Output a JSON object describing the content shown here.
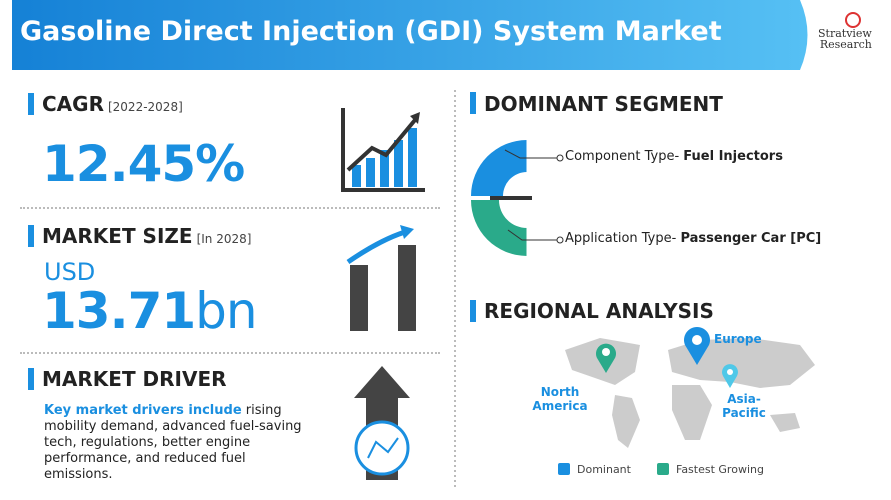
{
  "header": {
    "title": "Gasoline Direct Injection (GDI) System Market",
    "logo": {
      "name": "Stratview",
      "sub": "Research"
    }
  },
  "cagr": {
    "label": "CAGR",
    "period": "[2022-2028]",
    "value": "12.45%"
  },
  "market_size": {
    "label": "MARKET SIZE",
    "period": "[In 2028]",
    "currency": "USD",
    "value": "13.71",
    "unit": "bn"
  },
  "market_driver": {
    "label": "MARKET DRIVER",
    "lead": "Key market drivers include",
    "text": " rising mobility demand, advanced fuel-saving tech, regulations, better engine performance, and reduced fuel emissions."
  },
  "dominant_segment": {
    "label": "DOMINANT SEGMENT",
    "items": [
      {
        "type": "Component Type- ",
        "name": "Fuel Injectors"
      },
      {
        "type": "Application Type- ",
        "name": "Passenger Car [PC]"
      }
    ]
  },
  "regional_analysis": {
    "label": "REGIONAL ANALYSIS",
    "regions": [
      "Europe",
      "North America",
      "Asia-Pacific"
    ],
    "legend": [
      "Dominant",
      "Fastest Growing"
    ]
  }
}
